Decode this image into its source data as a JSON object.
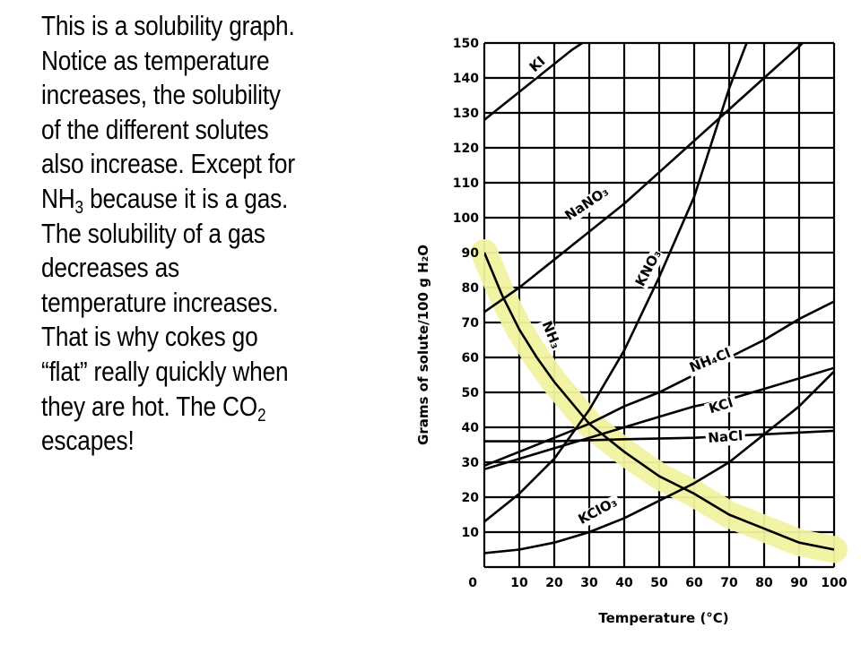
{
  "text_block": {
    "lines": [
      {
        "text": "This is a solubility graph."
      },
      {
        "text": "Notice as temperature"
      },
      {
        "text": "increases, the solubility"
      },
      {
        "text": "of the different solutes"
      },
      {
        "text": "also increase. Except for"
      },
      {
        "text": "NH",
        "sub": "3",
        "after": " because it is a gas."
      },
      {
        "text": "The solubility of a gas"
      },
      {
        "text": "decreases as"
      },
      {
        "text": "temperature increases."
      },
      {
        "text": "That is why cokes go"
      },
      {
        "text": "“flat” really quickly when"
      },
      {
        "text": "they are hot. The CO",
        "sub": "2"
      },
      {
        "text": "escapes!"
      }
    ]
  },
  "chart_data": {
    "type": "line",
    "title": "",
    "xlabel": "Temperature (°C)",
    "ylabel": "Grams of solute/100 g H₂O",
    "xlim": [
      0,
      100
    ],
    "ylim": [
      0,
      150
    ],
    "x_ticks": [
      0,
      10,
      20,
      30,
      40,
      50,
      60,
      70,
      80,
      90,
      100
    ],
    "y_ticks": [
      10,
      20,
      30,
      40,
      50,
      60,
      70,
      80,
      90,
      100,
      110,
      120,
      130,
      140,
      150
    ],
    "grid": true,
    "highlight_color": "#f2f2a0",
    "highlighted_series": "NH₃",
    "series": [
      {
        "name": "KI",
        "label_at": [
          16,
          143
        ],
        "label_angle": -42,
        "points": [
          [
            0,
            128
          ],
          [
            10,
            136
          ],
          [
            20,
            144
          ],
          [
            25,
            148
          ],
          [
            28,
            150
          ]
        ]
      },
      {
        "name": "NaNO₃",
        "label_at": [
          30,
          103
        ],
        "label_angle": -34,
        "points": [
          [
            0,
            73
          ],
          [
            10,
            80
          ],
          [
            20,
            88
          ],
          [
            30,
            96
          ],
          [
            40,
            104
          ],
          [
            50,
            113
          ],
          [
            60,
            122
          ],
          [
            70,
            131
          ],
          [
            80,
            140
          ],
          [
            90,
            149
          ],
          [
            91,
            150
          ]
        ]
      },
      {
        "name": "KNO₃",
        "label_at": [
          48,
          85
        ],
        "label_angle": -62,
        "points": [
          [
            0,
            13
          ],
          [
            10,
            21
          ],
          [
            20,
            31
          ],
          [
            30,
            45
          ],
          [
            40,
            62
          ],
          [
            50,
            83
          ],
          [
            60,
            106
          ],
          [
            70,
            137
          ],
          [
            75,
            150
          ]
        ]
      },
      {
        "name": "NH₃",
        "label_at": [
          18,
          66
        ],
        "label_angle": 68,
        "points": [
          [
            0,
            90
          ],
          [
            5,
            78
          ],
          [
            10,
            68
          ],
          [
            15,
            60
          ],
          [
            20,
            53
          ],
          [
            25,
            47
          ],
          [
            30,
            41
          ],
          [
            40,
            33
          ],
          [
            50,
            26
          ],
          [
            60,
            21
          ],
          [
            70,
            15
          ],
          [
            80,
            11
          ],
          [
            90,
            7
          ],
          [
            100,
            5
          ]
        ]
      },
      {
        "name": "NH₄Cl",
        "label_at": [
          65,
          58
        ],
        "label_angle": -22,
        "points": [
          [
            0,
            29
          ],
          [
            10,
            33
          ],
          [
            20,
            37
          ],
          [
            30,
            41
          ],
          [
            40,
            46
          ],
          [
            50,
            50
          ],
          [
            60,
            55
          ],
          [
            70,
            60
          ],
          [
            80,
            65
          ],
          [
            90,
            71
          ],
          [
            100,
            76
          ]
        ]
      },
      {
        "name": "KCl",
        "label_at": [
          68,
          45
        ],
        "label_angle": -17,
        "points": [
          [
            0,
            28
          ],
          [
            10,
            31
          ],
          [
            20,
            34
          ],
          [
            30,
            37
          ],
          [
            40,
            40
          ],
          [
            50,
            43
          ],
          [
            60,
            46
          ],
          [
            70,
            48
          ],
          [
            80,
            51
          ],
          [
            90,
            54
          ],
          [
            100,
            57
          ]
        ]
      },
      {
        "name": "NaCl",
        "label_at": [
          69,
          36
        ],
        "label_angle": -4,
        "points": [
          [
            0,
            36
          ],
          [
            20,
            36
          ],
          [
            40,
            36.6
          ],
          [
            60,
            37
          ],
          [
            80,
            38
          ],
          [
            100,
            39
          ]
        ]
      },
      {
        "name": "KClO₃",
        "label_at": [
          33,
          15
        ],
        "label_angle": -28,
        "points": [
          [
            0,
            4
          ],
          [
            10,
            5
          ],
          [
            20,
            7
          ],
          [
            30,
            10
          ],
          [
            40,
            14
          ],
          [
            50,
            19
          ],
          [
            60,
            24
          ],
          [
            70,
            30
          ],
          [
            80,
            38
          ],
          [
            90,
            46
          ],
          [
            100,
            56
          ]
        ]
      }
    ]
  }
}
